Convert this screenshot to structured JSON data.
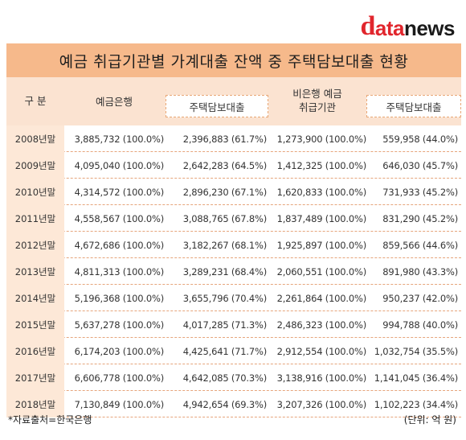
{
  "logo": {
    "part1": "d",
    "part2": "ata",
    "part3": "news"
  },
  "title": "예금 취급기관별 가계대출 잔액 중 주택담보대출 현황",
  "headers": {
    "division": "구  분",
    "deposit_bank": "예금은행",
    "deposit_bank_mortgage": "주택담보대출",
    "non_bank_line1": "비은행 예금",
    "non_bank_line2": "취급기관",
    "non_bank_mortgage": "주택담보대출"
  },
  "rows": [
    {
      "year": "2008년말",
      "bank": "3,885,732 (100.0%)",
      "bank_mort": "2,396,883 (61.7%)",
      "nonbank": "1,273,900 (100.0%)",
      "nonbank_mort": "559,958 (44.0%)"
    },
    {
      "year": "2009년말",
      "bank": "4,095,040 (100.0%)",
      "bank_mort": "2,642,283 (64.5%)",
      "nonbank": "1,412,325 (100.0%)",
      "nonbank_mort": "646,030 (45.7%)"
    },
    {
      "year": "2010년말",
      "bank": "4,314,572 (100.0%)",
      "bank_mort": "2,896,230 (67.1%)",
      "nonbank": "1,620,833 (100.0%)",
      "nonbank_mort": "731,933 (45.2%)"
    },
    {
      "year": "2011년말",
      "bank": "4,558,567 (100.0%)",
      "bank_mort": "3,088,765 (67.8%)",
      "nonbank": "1,837,489 (100.0%)",
      "nonbank_mort": "831,290 (45.2%)"
    },
    {
      "year": "2012년말",
      "bank": "4,672,686 (100.0%)",
      "bank_mort": "3,182,267 (68.1%)",
      "nonbank": "1,925,897 (100.0%)",
      "nonbank_mort": "859,566 (44.6%)"
    },
    {
      "year": "2013년말",
      "bank": "4,811,313 (100.0%)",
      "bank_mort": "3,289,231 (68.4%)",
      "nonbank": "2,060,551 (100.0%)",
      "nonbank_mort": "891,980 (43.3%)"
    },
    {
      "year": "2014년말",
      "bank": "5,196,368 (100.0%)",
      "bank_mort": "3,655,796 (70.4%)",
      "nonbank": "2,261,864 (100.0%)",
      "nonbank_mort": "950,237 (42.0%)"
    },
    {
      "year": "2015년말",
      "bank": "5,637,278 (100.0%)",
      "bank_mort": "4,017,285 (71.3%)",
      "nonbank": "2,486,323 (100.0%)",
      "nonbank_mort": "994,788 (40.0%)"
    },
    {
      "year": "2016년말",
      "bank": "6,174,203 (100.0%)",
      "bank_mort": "4,425,641 (71.7%)",
      "nonbank": "2,912,554 (100.0%)",
      "nonbank_mort": "1,032,754 (35.5%)"
    },
    {
      "year": "2017년말",
      "bank": "6,606,778 (100.0%)",
      "bank_mort": "4,642,085 (70.3%)",
      "nonbank": "3,138,916 (100.0%)",
      "nonbank_mort": "1,141,045 (36.4%)"
    },
    {
      "year": "2018년말",
      "bank": "7,130,849 (100.0%)",
      "bank_mort": "4,942,654 (69.3%)",
      "nonbank": "3,207,326 (100.0%)",
      "nonbank_mort": "1,102,223 (34.4%)"
    }
  ],
  "footer": {
    "source": "*자료출처=한국은행",
    "unit": "(단위: 억 원)"
  },
  "colors": {
    "title_bg": "#f6b98b",
    "header_bg": "#fbe3d1",
    "year_bg": "#fde8d7",
    "logo_red": "#e1262d"
  }
}
